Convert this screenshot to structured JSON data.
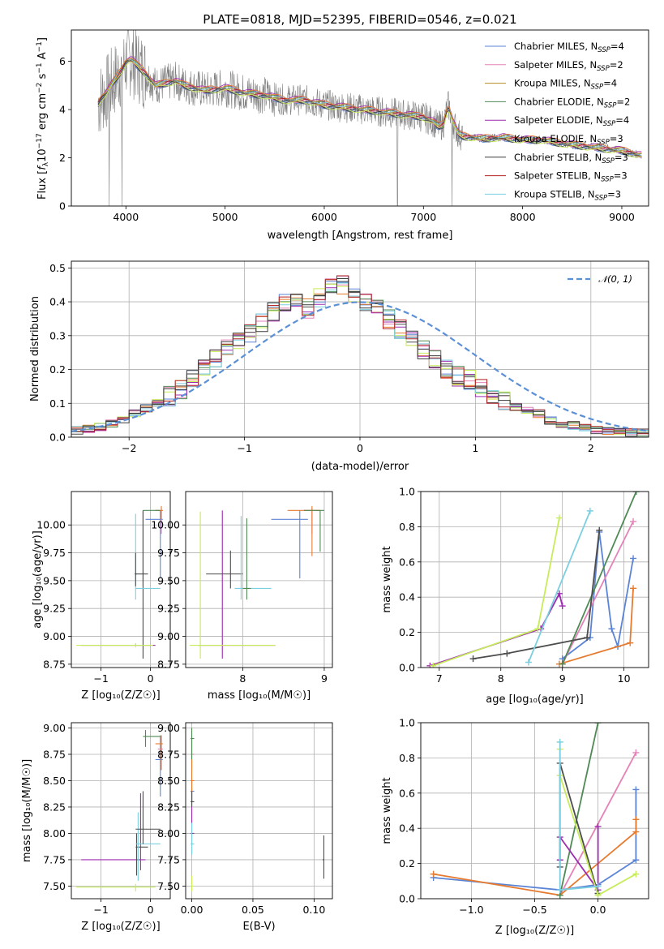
{
  "figure_title": "PLATE=0818, MJD=52395, FIBERID=0546, z=0.021",
  "colors": {
    "Chabrier MILES": "#5b84d6",
    "Salpeter MILES": "#e582b8",
    "Kroupa MILES": "#b58b22",
    "Chabrier ELODIE": "#4f8a55",
    "Salpeter ELODIE": "#9d2cb0",
    "Kroupa ELODIE": "#4d4d4d",
    "Chabrier STELIB": "#3a3a3a",
    "Salpeter STELIB": "#b22222",
    "Kroupa STELIB": "#7ccfe0",
    "extra_orange": "#e67a2e",
    "extra_yellowgreen": "#c6ec5a",
    "data_gray": "#808080",
    "normal_fit": "#5b8fd6"
  },
  "chart_data": [
    {
      "id": "spectrum",
      "type": "line",
      "title": "PLATE=0818, MJD=52395, FIBERID=0546, z=0.021",
      "xlabel": "wavelength [Angstrom, rest frame]",
      "ylabel_parts": [
        "Flux [",
        "f",
        "λ",
        "10",
        "−17",
        " erg cm",
        "−2",
        " s",
        "−1",
        " A",
        "−1",
        "]"
      ],
      "xlim": [
        3450,
        9270
      ],
      "ylim": [
        0,
        7.3
      ],
      "xticks": [
        4000,
        5000,
        6000,
        7000,
        8000,
        9000
      ],
      "yticks": [
        0,
        2,
        4,
        6
      ],
      "legend": [
        {
          "name": "Chabrier MILES, N",
          "sub": "SSP",
          "tail": "=4"
        },
        {
          "name": "Salpeter MILES, N",
          "sub": "SSP",
          "tail": "=2"
        },
        {
          "name": "Kroupa MILES, N",
          "sub": "SSP",
          "tail": "=4"
        },
        {
          "name": "Chabrier ELODIE, N",
          "sub": "SSP",
          "tail": "=2"
        },
        {
          "name": "Salpeter ELODIE, N",
          "sub": "SSP",
          "tail": "=4"
        },
        {
          "name": "Kroupa ELODIE, N",
          "sub": "SSP",
          "tail": "=3"
        },
        {
          "name": "Chabrier STELIB, N",
          "sub": "SSP",
          "tail": "=3"
        },
        {
          "name": "Salpeter STELIB, N",
          "sub": "SSP",
          "tail": "=3"
        },
        {
          "name": "Kroupa STELIB, N",
          "sub": "SSP",
          "tail": "=3"
        }
      ],
      "legend_location": "upper right",
      "model_curve": {
        "x": [
          3700,
          3750,
          3800,
          3850,
          3900,
          3950,
          4000,
          4050,
          4100,
          4200,
          4300,
          4400,
          4500,
          4600,
          4800,
          5000,
          5200,
          5400,
          5600,
          5800,
          6000,
          6200,
          6400,
          6600,
          6800,
          7000,
          7100,
          7150,
          7200,
          7250,
          7300,
          7350,
          7400,
          7600,
          7800,
          8000,
          8200,
          8400,
          8600,
          8800,
          9000,
          9200
        ],
        "y": [
          4.1,
          4.5,
          4.7,
          5.0,
          5.3,
          5.6,
          6.0,
          6.1,
          5.9,
          5.5,
          5.0,
          5.1,
          5.2,
          5.0,
          4.8,
          4.9,
          4.7,
          4.6,
          4.4,
          4.4,
          4.2,
          4.1,
          4.0,
          3.9,
          3.8,
          3.7,
          3.5,
          3.3,
          3.4,
          4.2,
          3.5,
          3.0,
          2.9,
          2.8,
          2.85,
          2.75,
          2.75,
          2.6,
          2.5,
          2.4,
          2.3,
          2.1
        ]
      }
    },
    {
      "id": "residuals",
      "type": "step",
      "xlabel": "(data-model)/error",
      "ylabel": "Normed distribution",
      "xlim": [
        -2.5,
        2.5
      ],
      "ylim": [
        0,
        0.52
      ],
      "xticks": [
        -2,
        -1,
        0,
        1,
        2
      ],
      "yticks": [
        0.0,
        0.1,
        0.2,
        0.3,
        0.4,
        0.5
      ],
      "legend_label": "𝒩(0, 1)",
      "legend_location": "upper right",
      "bin_width": 0.1,
      "normal": {
        "mu": 0,
        "sigma": 1
      },
      "hist_center": [
        0.02,
        0.025,
        0.03,
        0.04,
        0.05,
        0.07,
        0.085,
        0.1,
        0.12,
        0.14,
        0.17,
        0.2,
        0.23,
        0.26,
        0.29,
        0.31,
        0.34,
        0.37,
        0.4,
        0.41,
        0.38,
        0.41,
        0.44,
        0.45,
        0.42,
        0.4,
        0.38,
        0.35,
        0.32,
        0.29,
        0.26,
        0.23,
        0.2,
        0.18,
        0.17,
        0.15,
        0.13,
        0.11,
        0.09,
        0.08,
        0.07,
        0.05,
        0.04,
        0.035,
        0.03,
        0.02,
        0.02,
        0.02,
        0.015,
        0.015
      ]
    },
    {
      "id": "age_vs_Z",
      "type": "errorbar",
      "xlabel": "Z [log₁₀(Z/Z☉)]",
      "ylabel": "age  [log₁₀(age/yr)]",
      "xlim": [
        -1.6,
        0.4
      ],
      "ylim": [
        8.72,
        10.3
      ],
      "xticks": [
        -1,
        0
      ],
      "yticks": [
        8.75,
        9.0,
        9.25,
        9.5,
        9.75,
        10.0
      ]
    },
    {
      "id": "age_vs_mass",
      "type": "errorbar",
      "xlabel": "mass [log₁₀(M/M☉)]",
      "ylabel": "",
      "xlim": [
        7.3,
        9.1
      ],
      "ylim": [
        8.72,
        10.3
      ],
      "xticks": [
        8,
        9
      ],
      "yticks": [
        8.75,
        9.0,
        9.25,
        9.5,
        9.75,
        10.0
      ]
    },
    {
      "id": "weight_vs_age",
      "type": "line",
      "xlabel": "age  [log₁₀(age/yr)]",
      "ylabel": "mass weight",
      "xlim": [
        6.7,
        10.4
      ],
      "ylim": [
        0,
        1.0
      ],
      "xticks": [
        7,
        8,
        9,
        10
      ],
      "yticks": [
        0.0,
        0.2,
        0.4,
        0.6,
        0.8,
        1.0
      ],
      "series": [
        {
          "x": [
            9.0,
            9.45,
            9.6,
            9.8,
            9.9,
            10.15
          ],
          "y": [
            0.05,
            0.17,
            0.77,
            0.22,
            0.12,
            0.62
          ]
        },
        {
          "x": [
            9.0,
            10.15
          ],
          "y": [
            0.02,
            0.83
          ]
        },
        {
          "x": [
            8.95,
            10.1,
            10.15
          ],
          "y": [
            0.02,
            0.14,
            0.45
          ]
        },
        {
          "x": [
            9.0,
            10.2
          ],
          "y": [
            0.02,
            1.0
          ]
        },
        {
          "x": [
            6.85,
            8.65,
            8.95,
            9.0
          ],
          "y": [
            0.01,
            0.22,
            0.42,
            0.35
          ]
        },
        {
          "x": [
            7.55,
            8.1,
            9.4,
            9.6
          ],
          "y": [
            0.05,
            0.08,
            0.17,
            0.78
          ]
        },
        {
          "x": [
            6.9,
            8.6,
            8.95
          ],
          "y": [
            0.01,
            0.22,
            0.85
          ]
        },
        {
          "x": [
            8.45,
            9.45
          ],
          "y": [
            0.03,
            0.89
          ]
        }
      ]
    },
    {
      "id": "mass_vs_Z",
      "type": "errorbar",
      "xlabel": "Z [log₁₀(Z/Z☉)]",
      "ylabel": "mass [log₁₀(M/M☉)]",
      "xlim": [
        -1.6,
        0.4
      ],
      "ylim": [
        7.38,
        9.05
      ],
      "xticks": [
        -1,
        0
      ],
      "yticks": [
        7.5,
        7.75,
        8.0,
        8.25,
        8.5,
        8.75,
        9.0
      ]
    },
    {
      "id": "mass_vs_ebv",
      "type": "errorbar",
      "xlabel": "E(B-V)",
      "ylabel": "",
      "xlim": [
        -0.005,
        0.115
      ],
      "ylim": [
        7.38,
        9.05
      ],
      "xticks": [
        0.0,
        0.05,
        0.1
      ],
      "xticklabels": [
        "0.00",
        "0.05",
        "0.10"
      ],
      "yticks": [
        7.5,
        7.75,
        8.0,
        8.25,
        8.5,
        8.75,
        9.0
      ]
    },
    {
      "id": "weight_vs_Z",
      "type": "line",
      "xlabel": "Z [log₁₀(Z/Z☉)]",
      "ylabel": "mass weight",
      "xlim": [
        -1.4,
        0.4
      ],
      "ylim": [
        0,
        1.0
      ],
      "xticks": [
        -1.0,
        -0.5,
        0.0
      ],
      "yticks": [
        0.0,
        0.2,
        0.4,
        0.6,
        0.8,
        1.0
      ],
      "series": [
        {
          "x": [
            -1.3,
            -0.3,
            -0.3,
            0.0,
            0.3,
            0.3
          ],
          "y": [
            0.12,
            0.05,
            0.05,
            0.08,
            0.22,
            0.62
          ]
        },
        {
          "x": [
            -0.3,
            0.3
          ],
          "y": [
            0.02,
            0.83
          ]
        },
        {
          "x": [
            -1.3,
            -0.3,
            0.3,
            0.3
          ],
          "y": [
            0.14,
            0.02,
            0.38,
            0.45
          ]
        },
        {
          "x": [
            -0.3,
            0.0
          ],
          "y": [
            0.02,
            1.0
          ]
        },
        {
          "x": [
            -0.3,
            -0.3,
            0.0,
            0.0
          ],
          "y": [
            0.22,
            0.35,
            0.05,
            0.41
          ]
        },
        {
          "x": [
            -0.3,
            -0.3,
            0.0
          ],
          "y": [
            0.18,
            0.77,
            0.03
          ]
        },
        {
          "x": [
            -0.3,
            -0.3,
            0.0,
            0.3
          ],
          "y": [
            0.85,
            0.7,
            0.02,
            0.14
          ]
        },
        {
          "x": [
            -0.3,
            -0.3,
            0.0
          ],
          "y": [
            0.89,
            0.05,
            0.07
          ]
        }
      ]
    }
  ]
}
